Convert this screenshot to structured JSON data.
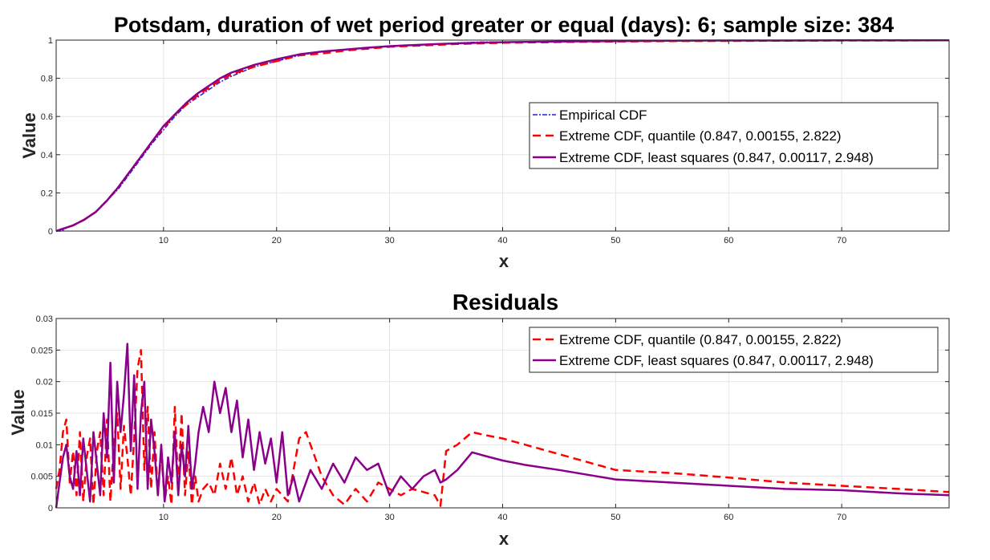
{
  "colors": {
    "empirical": "#1f1fe6",
    "quantile": "#ff0000",
    "least_squares": "#8b008b",
    "grid": "#e6e6e6",
    "axis": "#262626"
  },
  "chart_data": [
    {
      "type": "line",
      "title": "Potsdam, duration of wet period greater or equal (days): 6; sample size: 384",
      "xlabel": "x",
      "ylabel": "Value",
      "xlim": [
        0.5,
        79.5
      ],
      "ylim": [
        0,
        1
      ],
      "xticks": [
        10,
        20,
        30,
        40,
        50,
        60,
        70
      ],
      "yticks": [
        0,
        0.2,
        0.4,
        0.6,
        0.8,
        1
      ],
      "ytick_labels": [
        "0",
        "0.2",
        "0.4",
        "0.6",
        "0.8",
        "1"
      ],
      "grid": true,
      "legend_position": "right",
      "series": [
        {
          "name": "Empirical CDF",
          "style": "dash-dot",
          "x": [
            0.5,
            1,
            1.5,
            2,
            3,
            4,
            5,
            6,
            7,
            8,
            9,
            10,
            11,
            12,
            13,
            14,
            15,
            16,
            18,
            20,
            22,
            24,
            26,
            28,
            30,
            32,
            34,
            36,
            38,
            40,
            45,
            50,
            60,
            70,
            79.5
          ],
          "y": [
            0,
            0.0,
            0.02,
            0.03,
            0.06,
            0.1,
            0.16,
            0.22,
            0.3,
            0.38,
            0.46,
            0.53,
            0.6,
            0.66,
            0.7,
            0.74,
            0.78,
            0.81,
            0.86,
            0.89,
            0.92,
            0.94,
            0.95,
            0.96,
            0.97,
            0.975,
            0.98,
            0.985,
            0.99,
            0.99,
            0.993,
            0.995,
            0.997,
            0.998,
            1.0
          ]
        },
        {
          "name": "Extreme CDF, quantile (0.847, 0.00155, 2.822)",
          "style": "dashed",
          "x": [
            0.5,
            1,
            2,
            3,
            4,
            5,
            6,
            7,
            8,
            9,
            10,
            11,
            12,
            13,
            14,
            15,
            16,
            18,
            20,
            22,
            24,
            26,
            28,
            30,
            32,
            34,
            36,
            38,
            40,
            45,
            50,
            55,
            60,
            65,
            70,
            75,
            79.5
          ],
          "y": [
            0,
            0.01,
            0.03,
            0.06,
            0.1,
            0.16,
            0.23,
            0.31,
            0.39,
            0.47,
            0.54,
            0.61,
            0.66,
            0.71,
            0.75,
            0.79,
            0.82,
            0.86,
            0.89,
            0.92,
            0.93,
            0.945,
            0.955,
            0.965,
            0.97,
            0.975,
            0.98,
            0.983,
            0.986,
            0.99,
            0.993,
            0.995,
            0.996,
            0.997,
            0.998,
            0.998,
            0.999
          ]
        },
        {
          "name": "Extreme CDF, least squares (0.847, 0.00117, 2.948)",
          "style": "solid",
          "x": [
            0.5,
            1,
            2,
            3,
            4,
            5,
            6,
            7,
            8,
            9,
            10,
            11,
            12,
            13,
            14,
            15,
            16,
            18,
            20,
            22,
            24,
            26,
            28,
            30,
            32,
            34,
            36,
            38,
            40,
            45,
            50,
            55,
            60,
            65,
            70,
            75,
            79.5
          ],
          "y": [
            0,
            0.01,
            0.03,
            0.06,
            0.1,
            0.16,
            0.23,
            0.31,
            0.39,
            0.47,
            0.55,
            0.61,
            0.67,
            0.72,
            0.76,
            0.8,
            0.83,
            0.87,
            0.9,
            0.925,
            0.94,
            0.95,
            0.96,
            0.968,
            0.974,
            0.979,
            0.983,
            0.986,
            0.989,
            0.993,
            0.995,
            0.997,
            0.998,
            0.998,
            0.999,
            0.999,
            0.999
          ]
        }
      ]
    },
    {
      "type": "line",
      "title": "Residuals",
      "xlabel": "x",
      "ylabel": "Value",
      "xlim": [
        0.5,
        79.5
      ],
      "ylim": [
        0,
        0.03
      ],
      "xticks": [
        10,
        20,
        30,
        40,
        50,
        60,
        70
      ],
      "yticks": [
        0,
        0.005,
        0.01,
        0.015,
        0.02,
        0.025,
        0.03
      ],
      "ytick_labels": [
        "0",
        "0.005",
        "0.01",
        "0.015",
        "0.02",
        "0.025",
        "0.03"
      ],
      "grid": true,
      "legend_position": "top-right",
      "series": [
        {
          "name": "Extreme CDF, quantile (0.847, 0.00155, 2.822)",
          "style": "dashed",
          "x": [
            0.5,
            0.8,
            1.1,
            1.4,
            1.7,
            2.0,
            2.3,
            2.6,
            2.9,
            3.2,
            3.5,
            3.8,
            4.1,
            4.4,
            4.7,
            5.0,
            5.3,
            5.6,
            5.9,
            6.2,
            6.5,
            6.8,
            7.1,
            7.4,
            7.7,
            8.0,
            8.3,
            8.6,
            8.9,
            9.2,
            9.5,
            9.8,
            10.1,
            10.4,
            10.7,
            11.0,
            11.3,
            11.6,
            11.9,
            12.2,
            12.5,
            12.8,
            13.1,
            13.5,
            14.0,
            14.5,
            15.0,
            15.5,
            16.0,
            16.5,
            17.0,
            17.5,
            18.0,
            18.5,
            19.0,
            19.5,
            20.0,
            20.5,
            21.0,
            21.5,
            22.0,
            22.6,
            23.0,
            24.0,
            25.0,
            26.0,
            27.0,
            28.0,
            29.0,
            30.0,
            31.0,
            32.0,
            33.0,
            34.0,
            34.5,
            35.0,
            36.0,
            37.3,
            38.5,
            40.0,
            42.0,
            45.0,
            50.0,
            55.0,
            60.0,
            65.0,
            70.0,
            75.0,
            79.5
          ],
          "y": [
            0.003,
            0.006,
            0.012,
            0.014,
            0.004,
            0.009,
            0.002,
            0.012,
            0.001,
            0.008,
            0.011,
            0.0005,
            0.009,
            0.012,
            0.002,
            0.014,
            0.001,
            0.01,
            0.015,
            0.003,
            0.013,
            0.008,
            0.002,
            0.011,
            0.022,
            0.025,
            0.006,
            0.016,
            0.003,
            0.012,
            0.002,
            0.009,
            0.001,
            0.005,
            0.0005,
            0.016,
            0.003,
            0.015,
            0.002,
            0.009,
            0.0005,
            0.005,
            0.001,
            0.003,
            0.004,
            0.002,
            0.007,
            0.003,
            0.008,
            0.002,
            0.005,
            0.001,
            0.004,
            0.0005,
            0.003,
            0.001,
            0.003,
            0.002,
            0.001,
            0.006,
            0.011,
            0.012,
            0.01,
            0.005,
            0.002,
            0.0005,
            0.003,
            0.001,
            0.004,
            0.003,
            0.002,
            0.003,
            0.0025,
            0.002,
            0.0003,
            0.009,
            0.01,
            0.012,
            0.0115,
            0.011,
            0.01,
            0.0085,
            0.006,
            0.0055,
            0.0048,
            0.004,
            0.0035,
            0.003,
            0.0025
          ]
        },
        {
          "name": "Extreme CDF, least squares (0.847, 0.00117, 2.948)",
          "style": "solid",
          "x": [
            0.5,
            0.8,
            1.1,
            1.4,
            1.7,
            2.0,
            2.3,
            2.6,
            2.9,
            3.2,
            3.5,
            3.8,
            4.1,
            4.4,
            4.7,
            5.0,
            5.3,
            5.6,
            5.9,
            6.2,
            6.5,
            6.8,
            7.1,
            7.4,
            7.7,
            8.0,
            8.3,
            8.6,
            8.9,
            9.2,
            9.5,
            9.8,
            10.1,
            10.4,
            10.7,
            11.0,
            11.3,
            11.6,
            11.9,
            12.2,
            12.5,
            12.8,
            13.1,
            13.5,
            14.0,
            14.5,
            15.0,
            15.5,
            16.0,
            16.5,
            17.0,
            17.5,
            18.0,
            18.5,
            19.0,
            19.5,
            20.0,
            20.5,
            21.0,
            21.5,
            22.0,
            23.0,
            24.0,
            25.0,
            26.0,
            27.0,
            28.0,
            29.0,
            30.0,
            31.0,
            32.0,
            33.0,
            34.0,
            34.5,
            35.0,
            36.0,
            37.3,
            38.5,
            40.0,
            42.0,
            45.0,
            50.0,
            55.0,
            60.0,
            65.0,
            70.0,
            75.0,
            79.5
          ],
          "y": [
            0.0,
            0.004,
            0.008,
            0.01,
            0.005,
            0.003,
            0.009,
            0.002,
            0.011,
            0.006,
            0.001,
            0.012,
            0.007,
            0.002,
            0.015,
            0.008,
            0.023,
            0.004,
            0.02,
            0.012,
            0.018,
            0.026,
            0.009,
            0.021,
            0.003,
            0.015,
            0.02,
            0.003,
            0.014,
            0.009,
            0.002,
            0.01,
            0.001,
            0.008,
            0.004,
            0.012,
            0.002,
            0.01,
            0.005,
            0.013,
            0.003,
            0.007,
            0.012,
            0.016,
            0.012,
            0.02,
            0.015,
            0.019,
            0.012,
            0.017,
            0.008,
            0.014,
            0.006,
            0.012,
            0.007,
            0.011,
            0.004,
            0.012,
            0.002,
            0.005,
            0.001,
            0.006,
            0.003,
            0.007,
            0.004,
            0.008,
            0.006,
            0.007,
            0.002,
            0.005,
            0.003,
            0.005,
            0.006,
            0.004,
            0.0045,
            0.006,
            0.0088,
            0.0082,
            0.0075,
            0.0068,
            0.006,
            0.0045,
            0.004,
            0.0035,
            0.003,
            0.0028,
            0.0023,
            0.002
          ]
        }
      ]
    }
  ]
}
